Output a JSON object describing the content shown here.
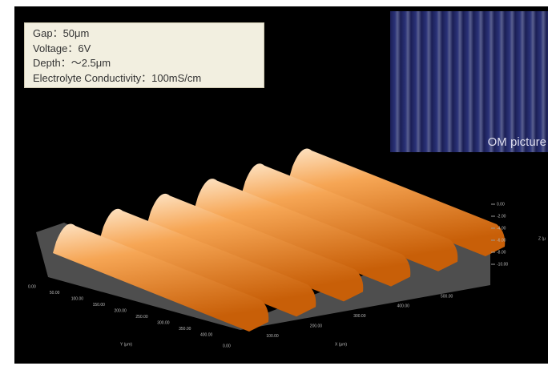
{
  "info_box": {
    "lines": [
      "Gap：50μm",
      "Voltage：6V",
      "Depth：～2.5μm",
      "Electrolyte Conductivity：100mS/cm"
    ]
  },
  "inset": {
    "label": "OM picture"
  },
  "plot": {
    "z_ticks": [
      "0.00",
      "-2.00",
      "-4.00",
      "-6.00",
      "-8.00",
      "-10.00"
    ],
    "z_label": "Z (μ",
    "y_ticks": [
      "0.00",
      "50.00",
      "100.00",
      "150.00",
      "200.00",
      "250.00",
      "300.00",
      "350.00",
      "400.00"
    ],
    "y_label": "Y (μm)",
    "x_ticks": [
      "0.00",
      "100.00",
      "200.00",
      "300.00",
      "400.00",
      "500.00"
    ],
    "x_label": "X (μm)"
  }
}
